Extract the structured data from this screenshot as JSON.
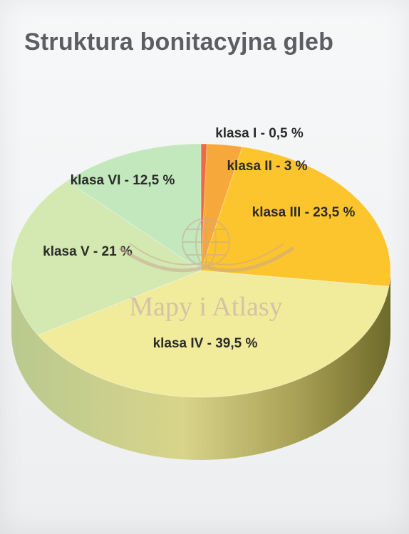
{
  "chart_data": {
    "type": "pie",
    "title": "Struktura bonitacyjna gleb",
    "unit": "%",
    "slices": [
      {
        "label": "klasa I - 0,5 %",
        "value": 0.5,
        "color": "#ee6a45"
      },
      {
        "label": "klasa II - 3 %",
        "value": 3,
        "color": "#f7a83a"
      },
      {
        "label": "klasa III - 23,5 %",
        "value": 23.5,
        "color": "#fcc52d"
      },
      {
        "label": "klasa IV - 39,5 %",
        "value": 39.5,
        "color": "#f1ec9c"
      },
      {
        "label": "klasa V - 21 %",
        "value": 21,
        "color": "#d4e8b2"
      },
      {
        "label": "klasa VI - 12,5 %",
        "value": 12.5,
        "color": "#c4e8bd"
      }
    ],
    "legend": "labels on slices",
    "style": "3d-tilted"
  },
  "watermark": {
    "text": "Mapy i Atlasy",
    "icon": "globe-icon"
  }
}
